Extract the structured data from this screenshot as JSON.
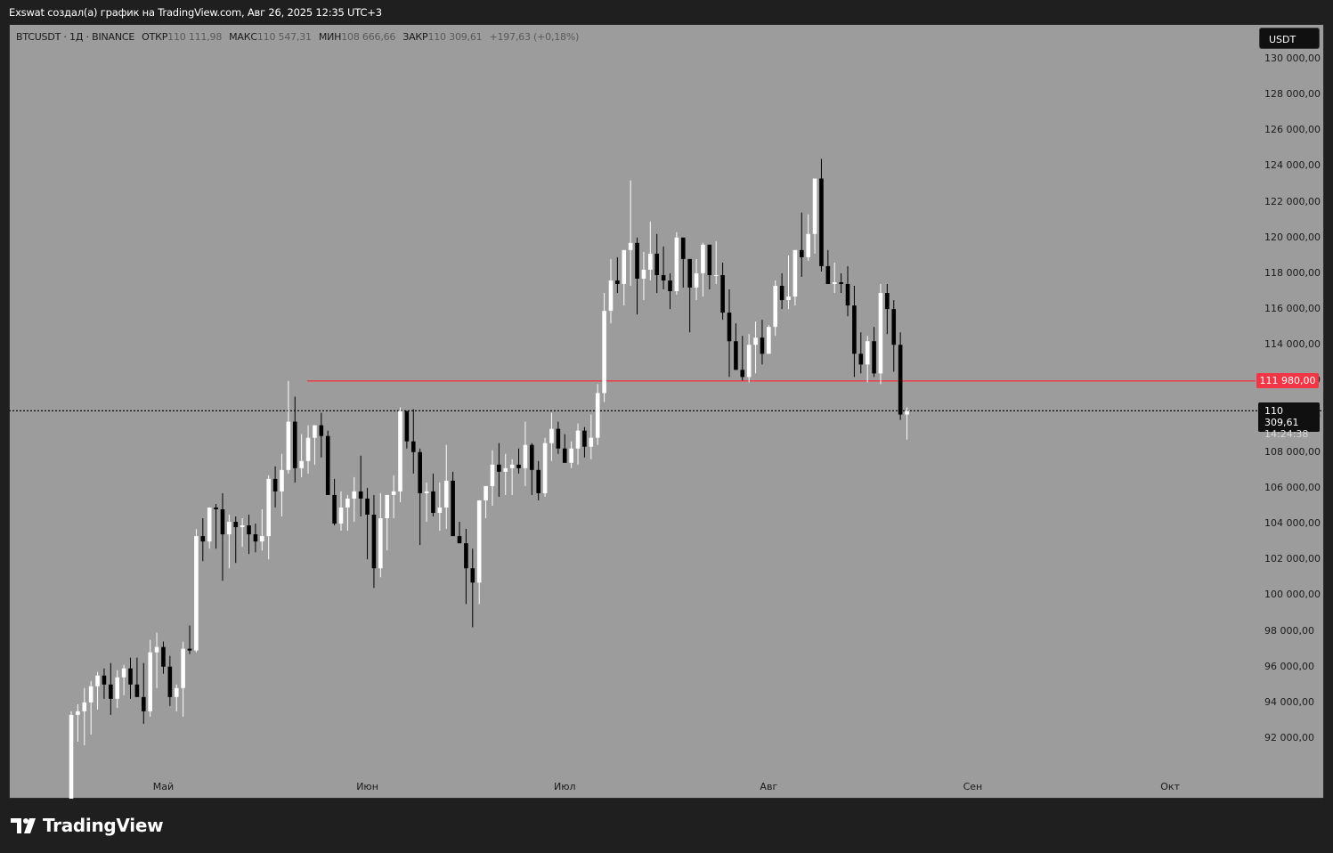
{
  "header": {
    "caption": "Exswat создал(а) график на TradingView.com, Авг 26, 2025 12:35 UTC+3"
  },
  "legend": {
    "symbol": "BTCUSDT · 1Д · BINANCE",
    "open_label": "ОТКР",
    "open_value": "110 111,98",
    "high_label": "МАКС",
    "high_value": "110 547,31",
    "low_label": "МИН",
    "low_value": "108 666,66",
    "close_label": "ЗАКР",
    "close_value": "110 309,61",
    "change": "+197,63 (+0,18%)"
  },
  "currency": "USDT",
  "level_label": "111 980,00",
  "last_price": {
    "price": "110 309,61",
    "countdown": "14:24:38"
  },
  "logo_text": "TradingView",
  "colors": {
    "background": "#1f1f1f",
    "plot_bg": "#9c9c9c",
    "bull_candle": "#ffffff",
    "bear_candle": "#000000",
    "level_line": "#f23645"
  },
  "chart_data": {
    "type": "candlestick",
    "symbol": "BTCUSDT",
    "interval": "1Д",
    "exchange": "BINANCE",
    "ylim": [
      90000,
      131000
    ],
    "y_ticks": [
      "130 000,00",
      "128 000,00",
      "126 000,00",
      "124 000,00",
      "122 000,00",
      "120 000,00",
      "118 000,00",
      "116 000,00",
      "114 000,00",
      "112 000,00",
      "110 000,00",
      "108 000,00",
      "106 000,00",
      "104 000,00",
      "102 000,00",
      "100 000,00",
      "98 000,00",
      "96 000,00",
      "94 000,00",
      "92 000,00"
    ],
    "y_tick_values": [
      130000,
      128000,
      126000,
      124000,
      122000,
      120000,
      118000,
      116000,
      114000,
      112000,
      110000,
      108000,
      106000,
      104000,
      102000,
      100000,
      98000,
      96000,
      94000,
      92000
    ],
    "x_ticks": [
      {
        "label": "Май",
        "day": 14
      },
      {
        "label": "Июн",
        "day": 45
      },
      {
        "label": "Июл",
        "day": 75
      },
      {
        "label": "Авг",
        "day": 106
      },
      {
        "label": "Сен",
        "day": 137
      },
      {
        "label": "Окт",
        "day": 167
      }
    ],
    "x_range_days": [
      -3,
      189
    ],
    "horizontal_level": {
      "value": 111980,
      "from_day": 36
    },
    "last_price_value": 110309.61,
    "candles_ohlc": [
      [
        85000,
        93500,
        84500,
        93300
      ],
      [
        93300,
        93900,
        91800,
        93500
      ],
      [
        93500,
        94800,
        91600,
        94000
      ],
      [
        94000,
        95200,
        92200,
        94900
      ],
      [
        94900,
        95700,
        93600,
        95500
      ],
      [
        95500,
        95900,
        94200,
        95000
      ],
      [
        95000,
        96200,
        93300,
        94200
      ],
      [
        94200,
        95800,
        93700,
        95400
      ],
      [
        95400,
        96100,
        94400,
        95900
      ],
      [
        95900,
        96500,
        94200,
        95000
      ],
      [
        95000,
        96500,
        94600,
        94300
      ],
      [
        94300,
        96200,
        92800,
        93500
      ],
      [
        93500,
        97500,
        93200,
        96800
      ],
      [
        96800,
        97900,
        94800,
        97100
      ],
      [
        97100,
        97400,
        95600,
        96000
      ],
      [
        96000,
        96600,
        93800,
        94300
      ],
      [
        94300,
        95000,
        93500,
        94800
      ],
      [
        94800,
        97400,
        93200,
        97000
      ],
      [
        97000,
        98300,
        96700,
        96900
      ],
      [
        96900,
        103700,
        96800,
        103300
      ],
      [
        103300,
        104300,
        101900,
        103000
      ],
      [
        103000,
        104700,
        102600,
        104900
      ],
      [
        104900,
        105100,
        102600,
        104800
      ],
      [
        104800,
        105700,
        100800,
        103400
      ],
      [
        103400,
        104500,
        101500,
        104100
      ],
      [
        104100,
        104400,
        101800,
        103800
      ],
      [
        103800,
        104300,
        102700,
        103900
      ],
      [
        103900,
        104500,
        102300,
        103400
      ],
      [
        103400,
        104000,
        102400,
        103000
      ],
      [
        103000,
        104800,
        102500,
        103300
      ],
      [
        103300,
        106700,
        102000,
        106500
      ],
      [
        106500,
        107200,
        104900,
        105800
      ],
      [
        105800,
        107900,
        104400,
        107000
      ],
      [
        107000,
        111980,
        106800,
        109700
      ],
      [
        109700,
        111100,
        106300,
        107100
      ],
      [
        107100,
        109000,
        106600,
        107500
      ],
      [
        107500,
        109500,
        106800,
        108800
      ],
      [
        108800,
        109300,
        107300,
        109500
      ],
      [
        109500,
        110200,
        107700,
        108900
      ],
      [
        108900,
        109200,
        106300,
        105600
      ],
      [
        105600,
        106500,
        103900,
        104000
      ],
      [
        104000,
        105800,
        103600,
        104900
      ],
      [
        104900,
        105600,
        103600,
        105400
      ],
      [
        105400,
        106600,
        104100,
        105800
      ],
      [
        105800,
        107800,
        104400,
        105400
      ],
      [
        105400,
        106000,
        102000,
        104500
      ],
      [
        104500,
        105600,
        100400,
        101500
      ],
      [
        101500,
        105700,
        101000,
        104300
      ],
      [
        104300,
        105400,
        102500,
        105600
      ],
      [
        105600,
        106700,
        104300,
        105800
      ],
      [
        105800,
        110500,
        105200,
        110300
      ],
      [
        110300,
        110300,
        108200,
        108600
      ],
      [
        108600,
        110400,
        106800,
        108000
      ],
      [
        108000,
        108200,
        102800,
        105700
      ],
      [
        105700,
        106300,
        104100,
        105800
      ],
      [
        105800,
        106800,
        104400,
        104600
      ],
      [
        104600,
        106300,
        103600,
        104900
      ],
      [
        104900,
        108400,
        103700,
        106400
      ],
      [
        106400,
        106900,
        103600,
        103300
      ],
      [
        103300,
        104100,
        103000,
        102900
      ],
      [
        102900,
        103700,
        99500,
        101500
      ],
      [
        101500,
        102600,
        98200,
        100700
      ],
      [
        100700,
        105200,
        99500,
        105300
      ],
      [
        105300,
        106000,
        104300,
        106100
      ],
      [
        106100,
        108100,
        105000,
        107300
      ],
      [
        107300,
        108500,
        105500,
        106900
      ],
      [
        106900,
        107900,
        105600,
        107100
      ],
      [
        107100,
        107600,
        105600,
        107300
      ],
      [
        107300,
        108200,
        106800,
        107100
      ],
      [
        107100,
        109700,
        106100,
        108400
      ],
      [
        108400,
        108500,
        105600,
        107000
      ],
      [
        107000,
        107500,
        105300,
        105700
      ],
      [
        105700,
        108800,
        105500,
        108500
      ],
      [
        108500,
        110200,
        107500,
        109300
      ],
      [
        109300,
        109700,
        107900,
        108200
      ],
      [
        108200,
        109000,
        107500,
        107400
      ],
      [
        107400,
        108600,
        107100,
        108200
      ],
      [
        108200,
        109600,
        107300,
        109200
      ],
      [
        109200,
        109400,
        107700,
        108300
      ],
      [
        108300,
        110100,
        107600,
        108800
      ],
      [
        108800,
        111800,
        108400,
        111300
      ],
      [
        111300,
        116900,
        110800,
        115900
      ],
      [
        115900,
        118800,
        115200,
        117600
      ],
      [
        117600,
        118900,
        116900,
        117400
      ],
      [
        117400,
        119200,
        116200,
        119300
      ],
      [
        119300,
        123200,
        117300,
        119700
      ],
      [
        119700,
        120000,
        115700,
        117700
      ],
      [
        117700,
        119200,
        116500,
        118200
      ],
      [
        118200,
        120900,
        117600,
        119100
      ],
      [
        119100,
        120200,
        116900,
        117900
      ],
      [
        117900,
        119500,
        117100,
        117600
      ],
      [
        117600,
        118000,
        116000,
        117000
      ],
      [
        117000,
        120300,
        116800,
        120000
      ],
      [
        120000,
        119900,
        117200,
        118800
      ],
      [
        118800,
        118000,
        114700,
        117200
      ],
      [
        117200,
        118800,
        116500,
        118000
      ],
      [
        118000,
        119700,
        116700,
        119600
      ],
      [
        119600,
        118600,
        117100,
        117900
      ],
      [
        117900,
        119800,
        117400,
        117900
      ],
      [
        117900,
        118600,
        115400,
        115800
      ],
      [
        115800,
        117100,
        112200,
        114200
      ],
      [
        114200,
        115200,
        112700,
        112600
      ],
      [
        112600,
        114500,
        112000,
        112200
      ],
      [
        112200,
        114600,
        111900,
        114000
      ],
      [
        114000,
        115300,
        112400,
        114400
      ],
      [
        114400,
        115400,
        112900,
        113500
      ],
      [
        113500,
        115100,
        114200,
        115000
      ],
      [
        115000,
        117600,
        114500,
        117300
      ],
      [
        117300,
        118000,
        116000,
        116500
      ],
      [
        116500,
        119000,
        116000,
        116700
      ],
      [
        116700,
        119300,
        116200,
        119300
      ],
      [
        119300,
        121400,
        117800,
        118900
      ],
      [
        118900,
        121300,
        118700,
        120200
      ],
      [
        120200,
        122300,
        119100,
        123300
      ],
      [
        123300,
        124400,
        118100,
        118400
      ],
      [
        118400,
        119300,
        117900,
        117400
      ],
      [
        117400,
        118600,
        116900,
        117500
      ],
      [
        117500,
        118000,
        116900,
        117400
      ],
      [
        117400,
        118400,
        115600,
        116200
      ],
      [
        116200,
        117300,
        112200,
        113500
      ],
      [
        113500,
        114700,
        112400,
        112900
      ],
      [
        112900,
        114500,
        111900,
        114200
      ],
      [
        114200,
        115000,
        112200,
        112400
      ],
      [
        112400,
        117400,
        111800,
        116900
      ],
      [
        116900,
        117400,
        114600,
        116000
      ],
      [
        116000,
        116500,
        112500,
        114000
      ],
      [
        114000,
        114700,
        109800,
        110100
      ],
      [
        110100,
        110500,
        108700,
        110300
      ]
    ]
  }
}
